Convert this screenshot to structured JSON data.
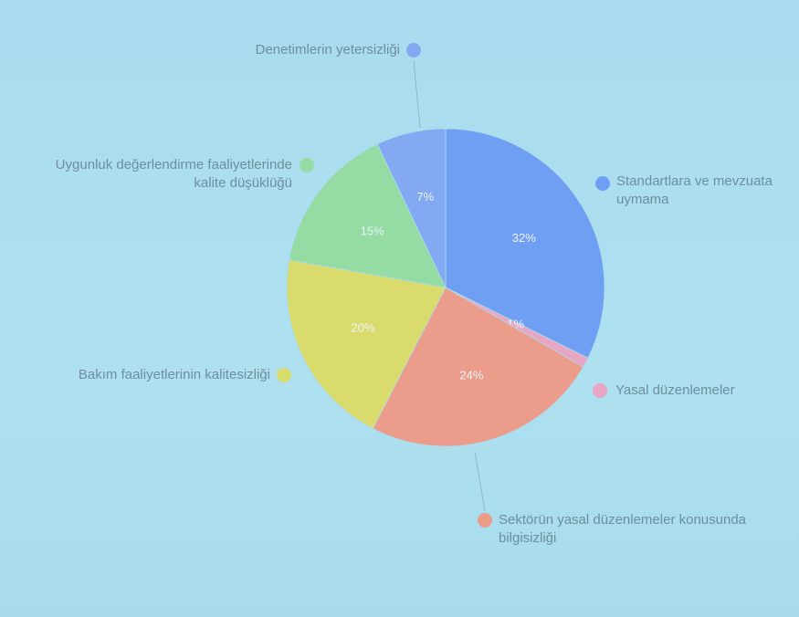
{
  "chart_data": {
    "type": "pie",
    "categories": [
      "Standartlara ve mevzuata uymama",
      "Yasal düzenlemeler",
      "Sektörün yasal düzenlemeler konusunda bilgisizliği",
      "Bakım faaliyetlerinin kalitesizliği",
      "Uygunluk değerlendirme faaliyetlerinde kalite düşüklüğü",
      "Denetimlerin yetersizliği"
    ],
    "values": [
      32,
      1,
      24,
      20,
      15,
      7
    ],
    "value_labels": [
      "32%",
      "1%",
      "24%",
      "20%",
      "15%",
      "7%"
    ],
    "colors": [
      "#6f9ff2",
      "#e9a6c4",
      "#eb9c8a",
      "#d9dc6c",
      "#94dba4",
      "#82a9f1"
    ]
  }
}
